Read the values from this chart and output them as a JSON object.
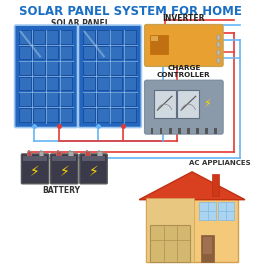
{
  "title": "SOLAR PANEL SYSTEM FOR HOME",
  "title_color": "#1a6fc4",
  "title_fontsize": 8.5,
  "bg_color": "#ffffff",
  "label_solar": "SOLAR PANEL",
  "label_battery": "BATTERY",
  "label_inverter": "INVERTER",
  "label_charge": "CHARGE\nCONTROLLER",
  "label_ac": "AC APPLIANCES",
  "wire_red": "#e53935",
  "wire_blue": "#64b5f6",
  "panel_dark": "#1a4fa0",
  "panel_mid": "#2266c0",
  "panel_light": "#4a90d9",
  "panel_grid": "#6aaee8",
  "inverter_color": "#e8a030",
  "inverter_dark": "#c07010",
  "charge_color": "#8a9aaa",
  "charge_dark": "#607080",
  "battery_body": "#3a3a4a",
  "battery_top": "#2a2a3a",
  "house_wall": "#f5c97a",
  "house_wall2": "#e8b860",
  "house_roof": "#d94020",
  "house_garage": "#e8c880",
  "house_door": "#8B5E3C",
  "house_window": "#aad4f0"
}
